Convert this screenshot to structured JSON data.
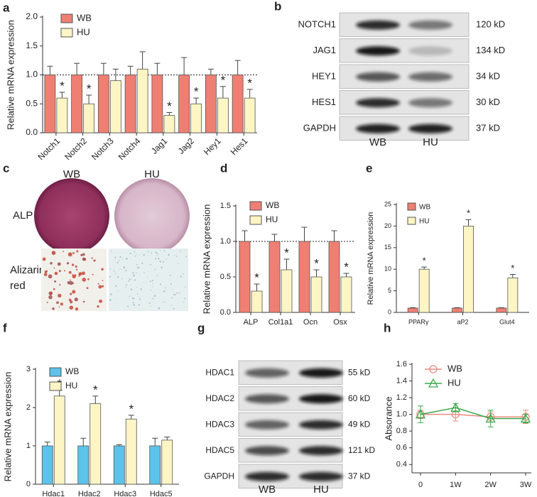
{
  "chart_data": [
    {
      "panel": "a",
      "type": "bar",
      "ylabel": "Relative mRNA expression",
      "categories": [
        "Notch1",
        "Notch2",
        "Notch3",
        "Notch4",
        "Jag1",
        "Jag2",
        "Hey1",
        "Hes1"
      ],
      "ylim": [
        0,
        2
      ],
      "yticks": [
        {
          "value": 0,
          "label": "0.0"
        },
        0.5,
        {
          "value": 1,
          "label": "1.0"
        },
        1.5,
        {
          "value": 2,
          "label": "2.0"
        }
      ],
      "reference_line": 1,
      "series": [
        {
          "name": "WB",
          "color": "#ef7f72",
          "values": [
            1,
            1,
            1,
            1,
            1,
            1,
            1,
            1
          ],
          "errors": [
            0.15,
            0.2,
            0.2,
            0.15,
            0.2,
            0.3,
            0.1,
            0.25
          ]
        },
        {
          "name": "HU",
          "color": "#fdf5c4",
          "values": [
            0.6,
            0.5,
            0.9,
            1.1,
            0.3,
            0.5,
            0.6,
            0.6
          ],
          "errors": [
            0.1,
            0.15,
            0.2,
            0.3,
            0.05,
            0.1,
            0.2,
            0.15
          ],
          "significance": [
            "*",
            "*",
            null,
            null,
            "*",
            "*",
            "*",
            "*"
          ]
        }
      ]
    },
    {
      "panel": "d",
      "type": "bar",
      "ylabel": "Relative mRNA expression",
      "categories": [
        "ALP",
        "Col1a1",
        "Ocn",
        "Osx"
      ],
      "ylim": [
        0,
        1.5
      ],
      "yticks": [
        {
          "value": 0,
          "label": "0.0"
        },
        0.5,
        {
          "value": 1,
          "label": "1.0"
        },
        1.5
      ],
      "reference_line": 1,
      "series": [
        {
          "name": "WB",
          "color": "#ef7f72",
          "values": [
            1,
            1,
            1,
            1
          ],
          "errors": [
            0.15,
            0.1,
            0.2,
            0.15
          ]
        },
        {
          "name": "HU",
          "color": "#fdf5c4",
          "values": [
            0.3,
            0.6,
            0.5,
            0.5
          ],
          "errors": [
            0.1,
            0.15,
            0.1,
            0.05
          ],
          "significance": [
            "*",
            "*",
            "*",
            "*"
          ]
        }
      ]
    },
    {
      "panel": "e",
      "type": "bar",
      "ylabel": "Relative mRNA expression",
      "categories": [
        "PPARγ",
        "aP2",
        "Glut4"
      ],
      "ylim": [
        0,
        25
      ],
      "yticks": [
        0,
        5,
        10,
        15,
        20,
        25
      ],
      "series": [
        {
          "name": "WB",
          "color": "#ef7f72",
          "values": [
            1,
            1,
            1
          ],
          "errors": [
            0.1,
            0.1,
            0.1
          ]
        },
        {
          "name": "HU",
          "color": "#fdf5c4",
          "values": [
            10,
            20,
            8
          ],
          "errors": [
            0.5,
            1.5,
            0.8
          ],
          "significance": [
            "*",
            "*",
            "*"
          ]
        }
      ]
    },
    {
      "panel": "f",
      "type": "bar",
      "ylabel": "Relative mRNA expression",
      "categories": [
        "Hdac1",
        "Hdac2",
        "Hdac3",
        "Hdac5"
      ],
      "ylim": [
        0,
        3
      ],
      "yticks": [
        0,
        1,
        2,
        3
      ],
      "series": [
        {
          "name": "WB",
          "color": "#5cc3ea",
          "values": [
            1,
            1,
            1,
            1
          ],
          "errors": [
            0.1,
            0.2,
            0.03,
            0.2
          ]
        },
        {
          "name": "HU",
          "color": "#fdf5c4",
          "values": [
            2.3,
            2.1,
            1.7,
            1.15
          ],
          "errors": [
            0.15,
            0.2,
            0.1,
            0.08
          ],
          "significance": [
            "*",
            "*",
            "*",
            null
          ]
        }
      ]
    },
    {
      "panel": "h",
      "type": "line",
      "ylabel": "Absorance",
      "categories": [
        "0",
        "1W",
        "2W",
        "3W"
      ],
      "ylim": [
        0.3,
        1.6
      ],
      "yticks": [
        0.4,
        0.6,
        0.8,
        {
          "value": 1,
          "label": "1.0"
        },
        1.2,
        1.4,
        1.6
      ],
      "series": [
        {
          "name": "WB",
          "color": "#ec8a80",
          "marker": "circle",
          "values": [
            1.0,
            1.0,
            0.97,
            0.97
          ],
          "errors": [
            0.05,
            0.08,
            0.06,
            0.08
          ]
        },
        {
          "name": "HU",
          "color": "#3aaa4a",
          "marker": "triangle",
          "values": [
            1.0,
            1.08,
            0.95,
            0.95
          ],
          "errors": [
            0.1,
            0.05,
            0.1,
            0.05
          ]
        }
      ]
    }
  ],
  "blots": [
    {
      "panel": "b",
      "lanes": [
        "WB",
        "HU"
      ],
      "rows": [
        {
          "label": "NOTCH1",
          "size": "120 kD"
        },
        {
          "label": "JAG1",
          "size": "134 kD"
        },
        {
          "label": "HEY1",
          "size": "34 kD"
        },
        {
          "label": "HES1",
          "size": "30 kD"
        },
        {
          "label": "GAPDH",
          "size": "37 kD"
        }
      ]
    },
    {
      "panel": "g",
      "lanes": [
        "WB",
        "HU"
      ],
      "rows": [
        {
          "label": "HDAC1",
          "size": "55 kD"
        },
        {
          "label": "HDAC2",
          "size": "60 kD"
        },
        {
          "label": "HDAC3",
          "size": "49 kD"
        },
        {
          "label": "HDAC5",
          "size": "121 kD"
        },
        {
          "label": "GAPDH",
          "size": "37 kD"
        }
      ]
    }
  ],
  "images": {
    "panel": "c",
    "columns": [
      "WB",
      "HU"
    ],
    "rows": [
      "ALP",
      "Alizarin red"
    ]
  }
}
